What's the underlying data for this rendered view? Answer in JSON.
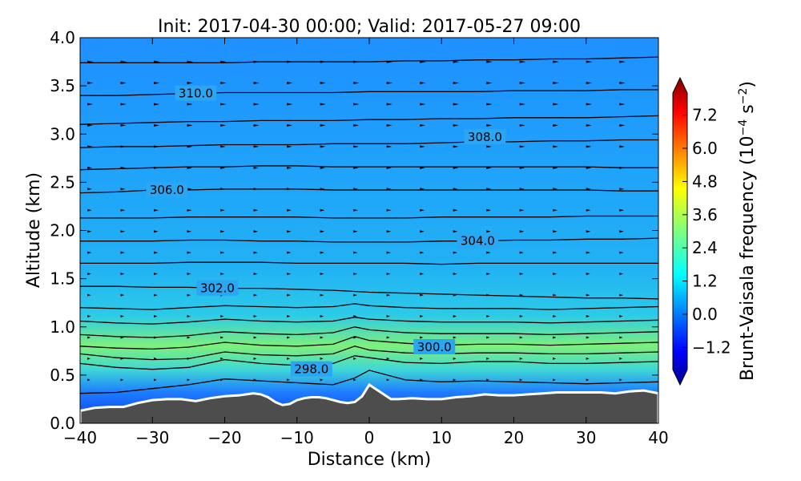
{
  "chart_data": {
    "type": "heatmap",
    "title": "Init: 2017-04-30 00:00; Valid: 2017-05-27 09:00",
    "xlabel": "Distance (km)",
    "ylabel": "Altitude (km)",
    "xlim": [
      -40,
      40
    ],
    "ylim": [
      0.0,
      4.0
    ],
    "x_ticks": [
      "−40",
      "−30",
      "−20",
      "−10",
      "0",
      "10",
      "20",
      "30",
      "40"
    ],
    "x_tick_values": [
      -40,
      -30,
      -20,
      -10,
      0,
      10,
      20,
      30,
      40
    ],
    "y_ticks": [
      "0.0",
      "0.5",
      "1.0",
      "1.5",
      "2.0",
      "2.5",
      "3.0",
      "3.5",
      "4.0"
    ],
    "y_tick_values": [
      0.0,
      0.5,
      1.0,
      1.5,
      2.0,
      2.5,
      3.0,
      3.5,
      4.0
    ],
    "colorbar": {
      "label": "Brunt-Vaisala frequency (10",
      "label_exp": "−4",
      "label_mid": " s",
      "label_exp2": "−2",
      "label_end": ")",
      "ticks": [
        "7.2",
        "6.0",
        "4.8",
        "3.6",
        "2.4",
        "1.2",
        "0.0",
        "−1.2"
      ],
      "tick_values": [
        7.2,
        6.0,
        4.8,
        3.6,
        2.4,
        1.2,
        0.0,
        -1.2
      ],
      "range": [
        -2.0,
        8.0
      ],
      "extend": "both",
      "colormap": "jet"
    },
    "contour_labels": [
      {
        "text": "310.0",
        "x": -24,
        "y": 3.42
      },
      {
        "text": "308.0",
        "x": 16,
        "y": 2.97
      },
      {
        "text": "306.0",
        "x": -28,
        "y": 2.42
      },
      {
        "text": "304.0",
        "x": 15,
        "y": 1.89
      },
      {
        "text": "302.0",
        "x": -21,
        "y": 1.4
      },
      {
        "text": "300.0",
        "x": 9,
        "y": 0.79
      },
      {
        "text": "298.0",
        "x": -8,
        "y": 0.56
      }
    ],
    "contours": [
      [
        [
          -40,
          0.31
        ],
        [
          -35,
          0.32
        ],
        [
          -30,
          0.36
        ],
        [
          -25,
          0.4
        ],
        [
          -20,
          0.46
        ],
        [
          -15,
          0.44
        ],
        [
          -10,
          0.42
        ],
        [
          -5,
          0.4
        ],
        [
          -2,
          0.47
        ],
        [
          0,
          0.55
        ],
        [
          5,
          0.45
        ],
        [
          10,
          0.43
        ],
        [
          15,
          0.44
        ],
        [
          20,
          0.43
        ],
        [
          25,
          0.42
        ],
        [
          30,
          0.41
        ],
        [
          35,
          0.42
        ],
        [
          40,
          0.43
        ]
      ],
      [
        [
          -40,
          0.62
        ],
        [
          -35,
          0.58
        ],
        [
          -30,
          0.56
        ],
        [
          -25,
          0.58
        ],
        [
          -20,
          0.66
        ],
        [
          -15,
          0.62
        ],
        [
          -10,
          0.6
        ],
        [
          -5,
          0.62
        ],
        [
          -2,
          0.7
        ],
        [
          0,
          0.68
        ],
        [
          5,
          0.63
        ],
        [
          10,
          0.62
        ],
        [
          15,
          0.64
        ],
        [
          20,
          0.64
        ],
        [
          25,
          0.62
        ],
        [
          30,
          0.62
        ],
        [
          35,
          0.63
        ],
        [
          40,
          0.64
        ]
      ],
      [
        [
          -40,
          0.72
        ],
        [
          -35,
          0.68
        ],
        [
          -30,
          0.66
        ],
        [
          -25,
          0.67
        ],
        [
          -20,
          0.74
        ],
        [
          -15,
          0.71
        ],
        [
          -10,
          0.7
        ],
        [
          -5,
          0.72
        ],
        [
          -2,
          0.8
        ],
        [
          0,
          0.76
        ],
        [
          5,
          0.73
        ],
        [
          10,
          0.72
        ],
        [
          15,
          0.73
        ],
        [
          20,
          0.73
        ],
        [
          25,
          0.72
        ],
        [
          30,
          0.72
        ],
        [
          35,
          0.73
        ],
        [
          40,
          0.74
        ]
      ],
      [
        [
          -40,
          0.8
        ],
        [
          -35,
          0.78
        ],
        [
          -30,
          0.77
        ],
        [
          -25,
          0.79
        ],
        [
          -20,
          0.84
        ],
        [
          -15,
          0.81
        ],
        [
          -10,
          0.8
        ],
        [
          -5,
          0.82
        ],
        [
          -2,
          0.9
        ],
        [
          0,
          0.86
        ],
        [
          5,
          0.83
        ],
        [
          10,
          0.81
        ],
        [
          15,
          0.82
        ],
        [
          20,
          0.82
        ],
        [
          25,
          0.81
        ],
        [
          30,
          0.82
        ],
        [
          35,
          0.83
        ],
        [
          40,
          0.84
        ]
      ],
      [
        [
          -40,
          0.92
        ],
        [
          -35,
          0.9
        ],
        [
          -30,
          0.89
        ],
        [
          -25,
          0.91
        ],
        [
          -20,
          0.95
        ],
        [
          -15,
          0.93
        ],
        [
          -10,
          0.92
        ],
        [
          -5,
          0.94
        ],
        [
          -2,
          1.0
        ],
        [
          0,
          0.97
        ],
        [
          5,
          0.94
        ],
        [
          10,
          0.93
        ],
        [
          15,
          0.93
        ],
        [
          20,
          0.93
        ],
        [
          25,
          0.92
        ],
        [
          30,
          0.93
        ],
        [
          35,
          0.94
        ],
        [
          40,
          0.95
        ]
      ],
      [
        [
          -40,
          1.06
        ],
        [
          -35,
          1.04
        ],
        [
          -30,
          1.03
        ],
        [
          -25,
          1.05
        ],
        [
          -20,
          1.08
        ],
        [
          -15,
          1.06
        ],
        [
          -10,
          1.05
        ],
        [
          -5,
          1.06
        ],
        [
          -2,
          1.1
        ],
        [
          0,
          1.08
        ],
        [
          5,
          1.06
        ],
        [
          10,
          1.05
        ],
        [
          15,
          1.05
        ],
        [
          20,
          1.05
        ],
        [
          25,
          1.04
        ],
        [
          30,
          1.05
        ],
        [
          35,
          1.06
        ],
        [
          40,
          1.07
        ]
      ],
      [
        [
          -40,
          1.2
        ],
        [
          -35,
          1.19
        ],
        [
          -30,
          1.18
        ],
        [
          -25,
          1.2
        ],
        [
          -20,
          1.22
        ],
        [
          -15,
          1.21
        ],
        [
          -10,
          1.2
        ],
        [
          -5,
          1.21
        ],
        [
          -2,
          1.24
        ],
        [
          0,
          1.22
        ],
        [
          5,
          1.2
        ],
        [
          10,
          1.19
        ],
        [
          15,
          1.19
        ],
        [
          20,
          1.19
        ],
        [
          25,
          1.18
        ],
        [
          30,
          1.19
        ],
        [
          35,
          1.2
        ],
        [
          40,
          1.21
        ]
      ],
      [
        [
          -40,
          1.42
        ],
        [
          -35,
          1.42
        ],
        [
          -30,
          1.41
        ],
        [
          -25,
          1.41
        ],
        [
          -20,
          1.4
        ],
        [
          -15,
          1.4
        ],
        [
          -10,
          1.39
        ],
        [
          -5,
          1.38
        ],
        [
          0,
          1.36
        ],
        [
          5,
          1.35
        ],
        [
          10,
          1.34
        ],
        [
          15,
          1.33
        ],
        [
          20,
          1.32
        ],
        [
          25,
          1.31
        ],
        [
          30,
          1.3
        ],
        [
          35,
          1.3
        ],
        [
          40,
          1.29
        ]
      ],
      [
        [
          -40,
          1.66
        ],
        [
          -35,
          1.66
        ],
        [
          -30,
          1.66
        ],
        [
          -25,
          1.67
        ],
        [
          -20,
          1.67
        ],
        [
          -15,
          1.67
        ],
        [
          -10,
          1.66
        ],
        [
          -5,
          1.66
        ],
        [
          0,
          1.66
        ],
        [
          5,
          1.66
        ],
        [
          10,
          1.65
        ],
        [
          15,
          1.66
        ],
        [
          20,
          1.66
        ],
        [
          25,
          1.66
        ],
        [
          30,
          1.66
        ],
        [
          35,
          1.66
        ],
        [
          40,
          1.66
        ]
      ],
      [
        [
          -40,
          1.89
        ],
        [
          -35,
          1.89
        ],
        [
          -30,
          1.89
        ],
        [
          -25,
          1.9
        ],
        [
          -20,
          1.9
        ],
        [
          -15,
          1.89
        ],
        [
          -10,
          1.89
        ],
        [
          -5,
          1.88
        ],
        [
          0,
          1.88
        ],
        [
          5,
          1.88
        ],
        [
          10,
          1.89
        ],
        [
          15,
          1.89
        ],
        [
          20,
          1.9
        ],
        [
          25,
          1.9
        ],
        [
          30,
          1.91
        ],
        [
          35,
          1.91
        ],
        [
          40,
          1.92
        ]
      ],
      [
        [
          -40,
          2.13
        ],
        [
          -35,
          2.13
        ],
        [
          -30,
          2.13
        ],
        [
          -25,
          2.14
        ],
        [
          -20,
          2.14
        ],
        [
          -15,
          2.14
        ],
        [
          -10,
          2.14
        ],
        [
          -5,
          2.13
        ],
        [
          0,
          2.13
        ],
        [
          5,
          2.13
        ],
        [
          10,
          2.14
        ],
        [
          15,
          2.14
        ],
        [
          20,
          2.14
        ],
        [
          25,
          2.14
        ],
        [
          30,
          2.15
        ],
        [
          35,
          2.15
        ],
        [
          40,
          2.15
        ]
      ],
      [
        [
          -40,
          2.39
        ],
        [
          -35,
          2.4
        ],
        [
          -30,
          2.42
        ],
        [
          -25,
          2.42
        ],
        [
          -20,
          2.43
        ],
        [
          -15,
          2.43
        ],
        [
          -10,
          2.43
        ],
        [
          -5,
          2.42
        ],
        [
          0,
          2.42
        ],
        [
          5,
          2.42
        ],
        [
          10,
          2.42
        ],
        [
          15,
          2.42
        ],
        [
          20,
          2.42
        ],
        [
          25,
          2.42
        ],
        [
          30,
          2.42
        ],
        [
          35,
          2.41
        ],
        [
          40,
          2.41
        ]
      ],
      [
        [
          -40,
          2.63
        ],
        [
          -35,
          2.64
        ],
        [
          -30,
          2.65
        ],
        [
          -25,
          2.66
        ],
        [
          -20,
          2.66
        ],
        [
          -15,
          2.67
        ],
        [
          -10,
          2.67
        ],
        [
          -5,
          2.66
        ],
        [
          0,
          2.66
        ],
        [
          5,
          2.66
        ],
        [
          10,
          2.66
        ],
        [
          15,
          2.66
        ],
        [
          20,
          2.66
        ],
        [
          25,
          2.66
        ],
        [
          30,
          2.66
        ],
        [
          35,
          2.65
        ],
        [
          40,
          2.65
        ]
      ],
      [
        [
          -40,
          2.86
        ],
        [
          -35,
          2.87
        ],
        [
          -30,
          2.87
        ],
        [
          -25,
          2.88
        ],
        [
          -20,
          2.89
        ],
        [
          -15,
          2.89
        ],
        [
          -10,
          2.89
        ],
        [
          -5,
          2.9
        ],
        [
          0,
          2.9
        ],
        [
          5,
          2.9
        ],
        [
          10,
          2.91
        ],
        [
          15,
          2.92
        ],
        [
          20,
          2.92
        ],
        [
          25,
          2.93
        ],
        [
          30,
          2.93
        ],
        [
          35,
          2.94
        ],
        [
          40,
          2.94
        ]
      ],
      [
        [
          -40,
          3.1
        ],
        [
          -35,
          3.11
        ],
        [
          -30,
          3.12
        ],
        [
          -25,
          3.13
        ],
        [
          -20,
          3.13
        ],
        [
          -15,
          3.14
        ],
        [
          -10,
          3.14
        ],
        [
          -5,
          3.14
        ],
        [
          0,
          3.15
        ],
        [
          5,
          3.15
        ],
        [
          10,
          3.16
        ],
        [
          15,
          3.16
        ],
        [
          20,
          3.17
        ],
        [
          25,
          3.17
        ],
        [
          30,
          3.17
        ],
        [
          35,
          3.18
        ],
        [
          40,
          3.19
        ]
      ],
      [
        [
          -40,
          3.4
        ],
        [
          -35,
          3.4
        ],
        [
          -30,
          3.41
        ],
        [
          -25,
          3.42
        ],
        [
          -20,
          3.43
        ],
        [
          -15,
          3.43
        ],
        [
          -10,
          3.43
        ],
        [
          -5,
          3.43
        ],
        [
          0,
          3.44
        ],
        [
          5,
          3.44
        ],
        [
          10,
          3.44
        ],
        [
          15,
          3.44
        ],
        [
          20,
          3.45
        ],
        [
          25,
          3.45
        ],
        [
          30,
          3.45
        ],
        [
          35,
          3.46
        ],
        [
          40,
          3.46
        ]
      ],
      [
        [
          -40,
          3.74
        ],
        [
          -35,
          3.74
        ],
        [
          -30,
          3.74
        ],
        [
          -25,
          3.74
        ],
        [
          -20,
          3.74
        ],
        [
          -15,
          3.75
        ],
        [
          -10,
          3.75
        ],
        [
          -5,
          3.75
        ],
        [
          0,
          3.75
        ],
        [
          5,
          3.76
        ],
        [
          10,
          3.76
        ],
        [
          15,
          3.77
        ],
        [
          20,
          3.77
        ],
        [
          25,
          3.78
        ],
        [
          30,
          3.78
        ],
        [
          35,
          3.79
        ],
        [
          40,
          3.8
        ]
      ]
    ],
    "terrain": [
      [
        -40,
        0.13
      ],
      [
        -38,
        0.16
      ],
      [
        -36,
        0.17
      ],
      [
        -34,
        0.17
      ],
      [
        -32,
        0.21
      ],
      [
        -30,
        0.24
      ],
      [
        -28,
        0.25
      ],
      [
        -26,
        0.25
      ],
      [
        -24,
        0.23
      ],
      [
        -22,
        0.26
      ],
      [
        -20,
        0.28
      ],
      [
        -18,
        0.29
      ],
      [
        -16,
        0.31
      ],
      [
        -15,
        0.3
      ],
      [
        -14,
        0.27
      ],
      [
        -13,
        0.22
      ],
      [
        -12,
        0.19
      ],
      [
        -11,
        0.2
      ],
      [
        -10,
        0.24
      ],
      [
        -9,
        0.26
      ],
      [
        -8,
        0.27
      ],
      [
        -7,
        0.27
      ],
      [
        -6,
        0.26
      ],
      [
        -5,
        0.24
      ],
      [
        -4,
        0.22
      ],
      [
        -3,
        0.21
      ],
      [
        -2,
        0.22
      ],
      [
        -1,
        0.28
      ],
      [
        0,
        0.4
      ],
      [
        1,
        0.35
      ],
      [
        2,
        0.3
      ],
      [
        3,
        0.25
      ],
      [
        4,
        0.25
      ],
      [
        6,
        0.26
      ],
      [
        8,
        0.25
      ],
      [
        10,
        0.25
      ],
      [
        12,
        0.27
      ],
      [
        14,
        0.28
      ],
      [
        16,
        0.3
      ],
      [
        18,
        0.29
      ],
      [
        20,
        0.29
      ],
      [
        22,
        0.3
      ],
      [
        24,
        0.31
      ],
      [
        26,
        0.32
      ],
      [
        28,
        0.32
      ],
      [
        30,
        0.32
      ],
      [
        32,
        0.32
      ],
      [
        34,
        0.31
      ],
      [
        36,
        0.33
      ],
      [
        38,
        0.34
      ],
      [
        40,
        0.31
      ]
    ]
  }
}
